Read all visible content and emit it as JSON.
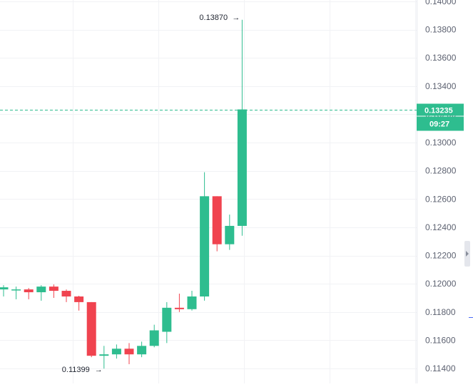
{
  "chart_data": {
    "type": "candlestick",
    "y_axis": {
      "position": "right",
      "ticks": [
        "0.11400",
        "0.11600",
        "0.11800",
        "0.12000",
        "0.12200",
        "0.12400",
        "0.12600",
        "0.12800",
        "0.13000",
        "0.13200",
        "0.13400",
        "0.13600",
        "0.13800",
        "0.14000"
      ],
      "range": [
        0.1132,
        0.1401
      ]
    },
    "candles": [
      {
        "o": 0.1196,
        "h": 0.1199,
        "l": 0.1191,
        "c": 0.11975
      },
      {
        "o": 0.1196,
        "h": 0.1198,
        "l": 0.1189,
        "c": 0.1196
      },
      {
        "o": 0.1196,
        "h": 0.1197,
        "l": 0.1189,
        "c": 0.1194
      },
      {
        "o": 0.1194,
        "h": 0.1199,
        "l": 0.1188,
        "c": 0.1198
      },
      {
        "o": 0.1198,
        "h": 0.11995,
        "l": 0.119,
        "c": 0.1195
      },
      {
        "o": 0.1195,
        "h": 0.1196,
        "l": 0.1187,
        "c": 0.1191
      },
      {
        "o": 0.1191,
        "h": 0.11915,
        "l": 0.1181,
        "c": 0.1187
      },
      {
        "o": 0.1187,
        "h": 0.1187,
        "l": 0.1148,
        "c": 0.1149
      },
      {
        "o": 0.1149,
        "h": 0.1156,
        "l": 0.11399,
        "c": 0.115
      },
      {
        "o": 0.115,
        "h": 0.1157,
        "l": 0.1147,
        "c": 0.1154
      },
      {
        "o": 0.1154,
        "h": 0.1158,
        "l": 0.1143,
        "c": 0.115
      },
      {
        "o": 0.115,
        "h": 0.1159,
        "l": 0.1148,
        "c": 0.1156
      },
      {
        "o": 0.1156,
        "h": 0.1171,
        "l": 0.1155,
        "c": 0.1167
      },
      {
        "o": 0.1166,
        "h": 0.1187,
        "l": 0.1158,
        "c": 0.1183
      },
      {
        "o": 0.1183,
        "h": 0.1193,
        "l": 0.118,
        "c": 0.1182
      },
      {
        "o": 0.1182,
        "h": 0.1195,
        "l": 0.1181,
        "c": 0.1191
      },
      {
        "o": 0.1191,
        "h": 0.1279,
        "l": 0.1188,
        "c": 0.1262
      },
      {
        "o": 0.1262,
        "h": 0.1262,
        "l": 0.1223,
        "c": 0.1228
      },
      {
        "o": 0.1228,
        "h": 0.1249,
        "l": 0.1224,
        "c": 0.1241
      },
      {
        "o": 0.1241,
        "h": 0.1387,
        "l": 0.1234,
        "c": 0.13235
      }
    ],
    "annotations": {
      "high": {
        "label": "0.13870",
        "value": 0.1387
      },
      "low": {
        "label": "0.11399",
        "value": 0.11399
      }
    },
    "current_price": {
      "label": "0.13235",
      "value": 0.13235,
      "countdown": "09:27"
    },
    "grid": true,
    "colors": {
      "up": "#2ebd8f",
      "down": "#f0434f",
      "grid": "#f1f2f5",
      "axis_text": "#5d6271",
      "price_line": "#2ebd8f"
    }
  }
}
